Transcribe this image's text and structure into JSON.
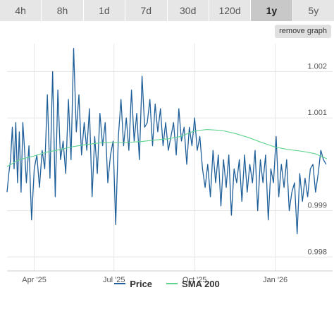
{
  "tabs": [
    {
      "label": "4h",
      "active": false
    },
    {
      "label": "8h",
      "active": false
    },
    {
      "label": "1d",
      "active": false
    },
    {
      "label": "7d",
      "active": false
    },
    {
      "label": "30d",
      "active": false
    },
    {
      "label": "120d",
      "active": false
    },
    {
      "label": "1y",
      "active": true
    },
    {
      "label": "5y",
      "active": false
    }
  ],
  "remove_graph_label": "remove graph",
  "colors": {
    "price": "#1f5f99",
    "sma": "#5fd38d",
    "grid": "#e6e6e6",
    "axis_text": "#555555"
  },
  "chart_data": {
    "type": "line",
    "x_range": [
      "2025-03-01",
      "2026-03-01"
    ],
    "x_ticks": [
      {
        "date": "2025-04-01",
        "label": "Apr '25"
      },
      {
        "date": "2025-07-01",
        "label": "Jul '25"
      },
      {
        "date": "2025-10-01",
        "label": "Oct '25"
      },
      {
        "date": "2026-01-01",
        "label": "Jan '26"
      }
    ],
    "ylim": [
      0.9977,
      1.0026
    ],
    "y_ticks": [
      {
        "value": 0.998,
        "label": "0.998"
      },
      {
        "value": 0.999,
        "label": "0.999"
      },
      {
        "value": 1.001,
        "label": "1.001"
      },
      {
        "value": 1.002,
        "label": "1.002"
      }
    ],
    "grid": true,
    "legend_position": "bottom",
    "series": [
      {
        "name": "Price",
        "x": [
          "2025-03-01",
          "2025-03-03",
          "2025-03-05",
          "2025-03-07",
          "2025-03-09",
          "2025-03-11",
          "2025-03-13",
          "2025-03-15",
          "2025-03-17",
          "2025-03-19",
          "2025-03-21",
          "2025-03-23",
          "2025-03-26",
          "2025-03-29",
          "2025-04-01",
          "2025-04-04",
          "2025-04-07",
          "2025-04-10",
          "2025-04-13",
          "2025-04-16",
          "2025-04-19",
          "2025-04-22",
          "2025-04-25",
          "2025-04-28",
          "2025-05-01",
          "2025-05-04",
          "2025-05-07",
          "2025-05-10",
          "2025-05-13",
          "2025-05-16",
          "2025-05-19",
          "2025-05-22",
          "2025-05-25",
          "2025-05-28",
          "2025-05-31",
          "2025-06-03",
          "2025-06-06",
          "2025-06-09",
          "2025-06-12",
          "2025-06-15",
          "2025-06-18",
          "2025-06-21",
          "2025-06-24",
          "2025-06-27",
          "2025-06-30",
          "2025-07-03",
          "2025-07-06",
          "2025-07-09",
          "2025-07-12",
          "2025-07-15",
          "2025-07-18",
          "2025-07-21",
          "2025-07-24",
          "2025-07-27",
          "2025-07-30",
          "2025-08-02",
          "2025-08-05",
          "2025-08-08",
          "2025-08-11",
          "2025-08-14",
          "2025-08-17",
          "2025-08-20",
          "2025-08-23",
          "2025-08-26",
          "2025-08-29",
          "2025-09-01",
          "2025-09-04",
          "2025-09-07",
          "2025-09-10",
          "2025-09-13",
          "2025-09-16",
          "2025-09-19",
          "2025-09-22",
          "2025-09-25",
          "2025-09-28",
          "2025-10-01",
          "2025-10-04",
          "2025-10-07",
          "2025-10-10",
          "2025-10-13",
          "2025-10-16",
          "2025-10-19",
          "2025-10-22",
          "2025-10-25",
          "2025-10-28",
          "2025-10-31",
          "2025-11-03",
          "2025-11-06",
          "2025-11-09",
          "2025-11-12",
          "2025-11-15",
          "2025-11-18",
          "2025-11-21",
          "2025-11-24",
          "2025-11-27",
          "2025-11-30",
          "2025-12-03",
          "2025-12-06",
          "2025-12-09",
          "2025-12-12",
          "2025-12-15",
          "2025-12-18",
          "2025-12-21",
          "2025-12-24",
          "2025-12-27",
          "2025-12-30",
          "2026-01-02",
          "2026-01-05",
          "2026-01-08",
          "2026-01-11",
          "2026-01-14",
          "2026-01-17",
          "2026-01-20",
          "2026-01-23",
          "2026-01-26",
          "2026-01-29",
          "2026-02-01",
          "2026-02-04",
          "2026-02-07",
          "2026-02-10",
          "2026-02-13",
          "2026-02-16",
          "2026-02-19",
          "2026-02-22",
          "2026-02-25",
          "2026-02-28"
        ],
        "values": [
          0.9994,
          0.9998,
          1.0001,
          1.0008,
          0.9999,
          1.0009,
          0.9996,
          1.0007,
          0.9994,
          1.0009,
          1.0003,
          0.9996,
          1.0004,
          0.9988,
          0.9999,
          1.0002,
          0.9995,
          1.0003,
          0.9999,
          1.0015,
          0.9997,
          1.002,
          0.9993,
          1.0016,
          1.0001,
          1.0005,
          0.9998,
          1.0014,
          1.0001,
          1.0025,
          1.0007,
          1.0015,
          1.0002,
          1.0009,
          1.0003,
          1.0012,
          0.9993,
          1.0006,
          0.9998,
          1.0011,
          1.0004,
          1.0009,
          0.9996,
          1.0002,
          1.0005,
          0.9987,
          1.0006,
          1.0014,
          1.0004,
          1.001,
          1.0003,
          1.0016,
          1.0005,
          1.0011,
          1.0001,
          1.0019,
          1.0008,
          1.0009,
          1.0014,
          1.0004,
          1.0013,
          1.0007,
          1.0012,
          1.0004,
          1.0009,
          1.0003,
          1.0006,
          1.0009,
          1.0002,
          1.0012,
          1.0005,
          1.0008,
          1.0,
          1.0008,
          1.0004,
          1.001,
          1.0003,
          1.0006,
          0.9999,
          0.9995,
          1.0,
          0.9993,
          1.0003,
          0.9996,
          1.0002,
          0.9991,
          1.0001,
          0.9995,
          1.0002,
          0.9989,
          0.9999,
          0.9996,
          1.0001,
          0.9992,
          1.0002,
          0.9994,
          1.0,
          0.9996,
          1.0003,
          0.999,
          1.0001,
          0.9996,
          1.0002,
          0.9988,
          0.9999,
          0.9996,
          1.0006,
          0.9993,
          1.0,
          0.9995,
          1.0001,
          0.999,
          0.9994,
          0.9996,
          0.9985,
          0.9998,
          0.9992,
          0.9997,
          0.9993,
          0.9999,
          1.0,
          0.9994,
          0.9998,
          1.0003,
          1.0001,
          1.0
        ]
      },
      {
        "name": "SMA 200",
        "x": [
          "2025-03-01",
          "2025-03-15",
          "2025-04-01",
          "2025-04-15",
          "2025-05-01",
          "2025-05-15",
          "2025-06-01",
          "2025-06-15",
          "2025-07-01",
          "2025-07-15",
          "2025-08-01",
          "2025-08-15",
          "2025-09-01",
          "2025-09-15",
          "2025-10-01",
          "2025-10-15",
          "2025-11-01",
          "2025-11-15",
          "2025-12-01",
          "2025-12-15",
          "2026-01-01",
          "2026-01-15",
          "2026-02-01",
          "2026-02-15",
          "2026-03-01"
        ],
        "values": [
          0.99995,
          1.0001,
          1.00018,
          1.00026,
          1.00032,
          1.00038,
          1.00043,
          1.00046,
          1.00047,
          1.00047,
          1.00049,
          1.00052,
          1.00055,
          1.0006,
          1.00072,
          1.00075,
          1.00073,
          1.00067,
          1.00058,
          1.00048,
          1.00037,
          1.00032,
          1.00028,
          1.00023,
          1.00012
        ]
      }
    ]
  }
}
